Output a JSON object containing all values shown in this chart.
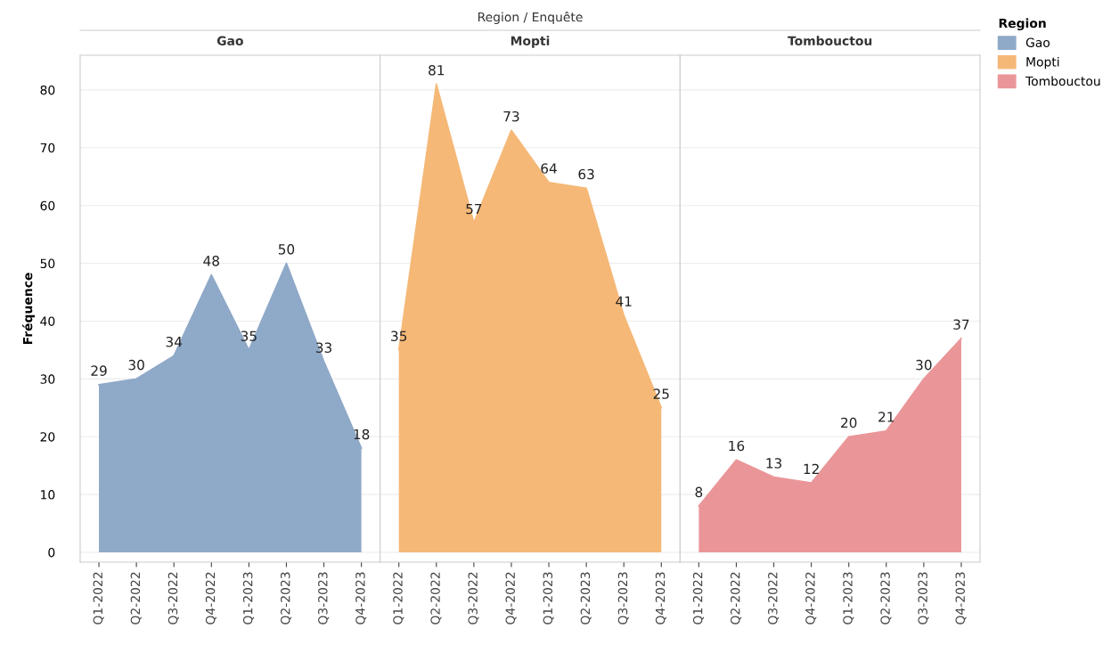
{
  "chart_data": [
    {
      "type": "area",
      "title": "Gao",
      "ylabel": "Fréquence",
      "annotations": [
        "Region / Enquête"
      ],
      "categories": [
        "Q1-2022",
        "Q2-2022",
        "Q3-2022",
        "Q4-2022",
        "Q1-2023",
        "Q2-2023",
        "Q3-2023",
        "Q4-2023"
      ],
      "series": [
        {
          "name": "Gao",
          "color": "#8fa9c8",
          "values": [
            29,
            30,
            34,
            48,
            35,
            50,
            33,
            18
          ]
        }
      ],
      "ylim": [
        -1.7,
        86
      ],
      "yticks": [
        0,
        10,
        20,
        30,
        40,
        50,
        60,
        70,
        80
      ],
      "grid": "y",
      "data_labels": true
    },
    {
      "type": "area",
      "title": "Mopti",
      "categories": [
        "Q1-2022",
        "Q2-2022",
        "Q3-2022",
        "Q4-2022",
        "Q1-2023",
        "Q2-2023",
        "Q3-2023",
        "Q4-2023"
      ],
      "series": [
        {
          "name": "Mopti",
          "color": "#f5b877",
          "values": [
            35,
            81,
            57,
            73,
            64,
            63,
            41,
            25
          ]
        }
      ],
      "ylim": [
        -1.7,
        86
      ],
      "yticks": [
        0,
        10,
        20,
        30,
        40,
        50,
        60,
        70,
        80
      ],
      "grid": "y",
      "data_labels": true,
      "tick_labels": "x"
    },
    {
      "type": "area",
      "title": "Tombouctou",
      "legend_title": "Region",
      "legend": "right",
      "categories": [
        "Q1-2022",
        "Q2-2022",
        "Q3-2022",
        "Q4-2022",
        "Q1-2023",
        "Q2-2023",
        "Q3-2023",
        "Q4-2023"
      ],
      "series": [
        {
          "name": "Tombouctou",
          "color": "#ea9699",
          "values": [
            8,
            16,
            13,
            12,
            20,
            21,
            30,
            37
          ]
        }
      ],
      "ylim": [
        -1.7,
        86
      ],
      "yticks": [
        0,
        10,
        20,
        30,
        40,
        50,
        60,
        70,
        80
      ],
      "grid": "y",
      "data_labels": true,
      "tick_labels": "x"
    }
  ]
}
